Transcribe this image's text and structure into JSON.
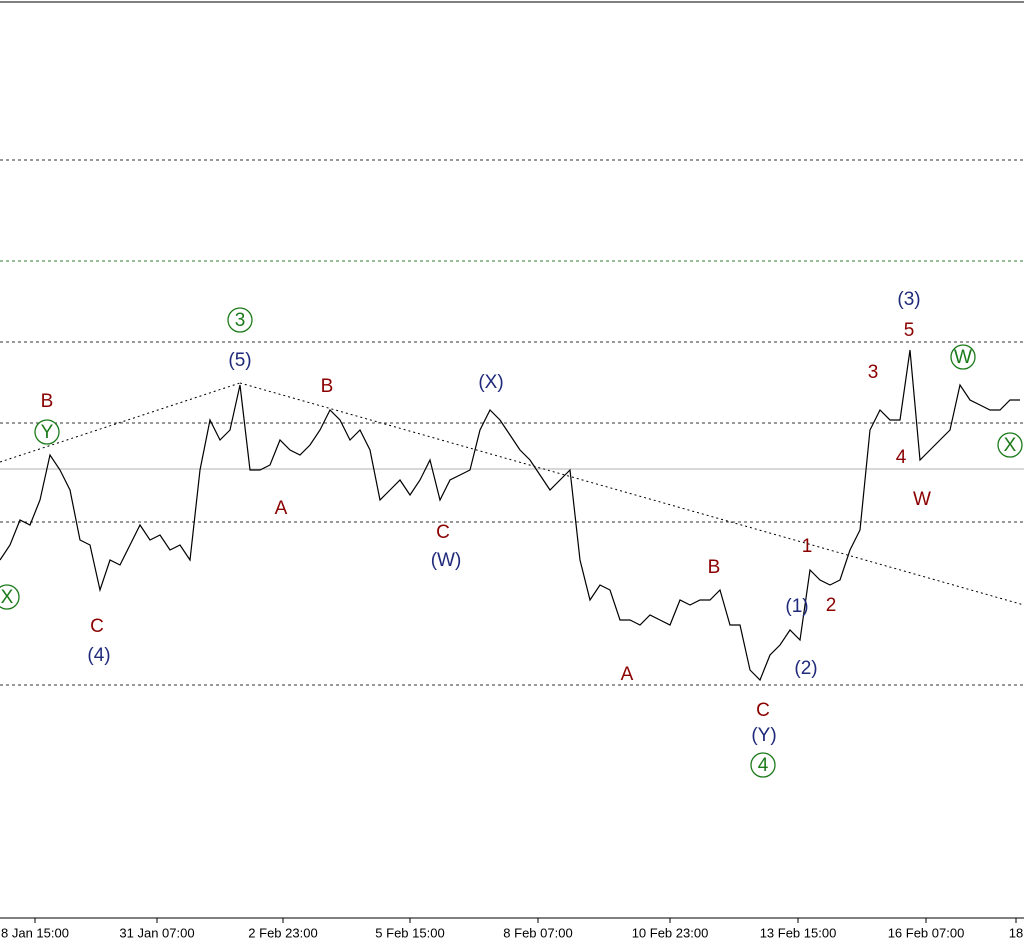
{
  "chart_data": {
    "type": "line",
    "xlim": [
      0,
      1024
    ],
    "ylim": [
      0,
      918
    ],
    "xticks": [
      {
        "value": 35,
        "label": "8 Jan 15:00"
      },
      {
        "value": 157,
        "label": "31 Jan 07:00"
      },
      {
        "value": 283,
        "label": "2 Feb 23:00"
      },
      {
        "value": 410,
        "label": "5 Feb 15:00"
      },
      {
        "value": 538,
        "label": "8 Feb 07:00"
      },
      {
        "value": 670,
        "label": "10 Feb 23:00"
      },
      {
        "value": 798,
        "label": "13 Feb 15:00"
      },
      {
        "value": 926,
        "label": "16 Feb 07:00"
      },
      {
        "value": 1016,
        "label": "18"
      }
    ],
    "series": [
      {
        "color": "#000000",
        "x": [
          0,
          10,
          20,
          30,
          40,
          50,
          60,
          70,
          80,
          90,
          100,
          110,
          120,
          130,
          140,
          150,
          160,
          170,
          180,
          190,
          200,
          210,
          220,
          230,
          240,
          250,
          260,
          270,
          280,
          290,
          300,
          310,
          320,
          330,
          340,
          350,
          360,
          370,
          380,
          390,
          400,
          410,
          420,
          430,
          440,
          450,
          460,
          470,
          480,
          490,
          500,
          510,
          520,
          530,
          540,
          550,
          560,
          570,
          580,
          590,
          600,
          610,
          620,
          630,
          640,
          650,
          660,
          670,
          680,
          690,
          700,
          710,
          720,
          730,
          740,
          750,
          760,
          770,
          780,
          790,
          800,
          810,
          820,
          830,
          840,
          850,
          860,
          870,
          880,
          890,
          900,
          910,
          920,
          930,
          940,
          950,
          960,
          970,
          980,
          990,
          1000,
          1010,
          1020
        ],
        "values": [
          358,
          373,
          398,
          393,
          418,
          463,
          448,
          428,
          378,
          373,
          328,
          358,
          353,
          373,
          393,
          378,
          383,
          368,
          373,
          358,
          448,
          498,
          478,
          488,
          533,
          448,
          448,
          453,
          478,
          468,
          463,
          473,
          488,
          508,
          498,
          478,
          488,
          468,
          418,
          428,
          438,
          423,
          438,
          458,
          418,
          438,
          443,
          448,
          488,
          508,
          498,
          483,
          468,
          458,
          443,
          428,
          438,
          448,
          358,
          318,
          333,
          328,
          298,
          298,
          293,
          303,
          298,
          293,
          318,
          313,
          318,
          318,
          328,
          293,
          293,
          248,
          238,
          263,
          273,
          288,
          278,
          348,
          338,
          333,
          338,
          368,
          388,
          488,
          508,
          498,
          498,
          568,
          458,
          468,
          478,
          488,
          533,
          518,
          513,
          508,
          508,
          518,
          518
        ]
      }
    ],
    "levels": [
      {
        "value": 758,
        "color": "#333333",
        "style": "dashed"
      },
      {
        "value": 657,
        "color": "#2e7d32",
        "style": "dashed"
      },
      {
        "value": 576,
        "color": "#333333",
        "style": "dashed"
      },
      {
        "value": 495,
        "color": "#333333",
        "style": "dashed"
      },
      {
        "value": 449,
        "color": "#b0b0b0",
        "style": "solid"
      },
      {
        "value": 396,
        "color": "#333333",
        "style": "dashed"
      },
      {
        "value": 233,
        "color": "#333333",
        "style": "dashed"
      }
    ],
    "trendlines": [
      {
        "x": [
          0,
          240
        ],
        "values": [
          456,
          535
        ]
      },
      {
        "x": [
          240,
          1024
        ],
        "values": [
          535,
          313
        ]
      }
    ],
    "annotations": [
      {
        "text": "X",
        "x": 7,
        "y": 321,
        "color": "#1a7a1a",
        "circled": true
      },
      {
        "text": "Y",
        "x": 47,
        "y": 486,
        "color": "#1a7a1a",
        "circled": true
      },
      {
        "text": "B",
        "x": 47,
        "y": 517,
        "color": "#8b0000"
      },
      {
        "text": "C",
        "x": 97,
        "y": 292,
        "color": "#8b0000"
      },
      {
        "text": "(4)",
        "x": 99,
        "y": 263,
        "color": "#1f2a7a"
      },
      {
        "text": "3",
        "x": 240,
        "y": 598,
        "color": "#1a7a1a",
        "circled": true
      },
      {
        "text": "(5)",
        "x": 240,
        "y": 558,
        "color": "#1f2a7a"
      },
      {
        "text": "B",
        "x": 327,
        "y": 532,
        "color": "#8b0000"
      },
      {
        "text": "A",
        "x": 281,
        "y": 410,
        "color": "#8b0000"
      },
      {
        "text": "C",
        "x": 443,
        "y": 386,
        "color": "#8b0000"
      },
      {
        "text": "(W)",
        "x": 446,
        "y": 358,
        "color": "#1f2a7a"
      },
      {
        "text": "(X)",
        "x": 491,
        "y": 536,
        "color": "#1f2a7a"
      },
      {
        "text": "A",
        "x": 627,
        "y": 244,
        "color": "#8b0000"
      },
      {
        "text": "B",
        "x": 714,
        "y": 351,
        "color": "#8b0000"
      },
      {
        "text": "C",
        "x": 763,
        "y": 208,
        "color": "#8b0000"
      },
      {
        "text": "(Y)",
        "x": 764,
        "y": 183,
        "color": "#1f2a7a"
      },
      {
        "text": "4",
        "x": 763,
        "y": 153,
        "color": "#1a7a1a",
        "circled": true
      },
      {
        "text": "1",
        "x": 807,
        "y": 372,
        "color": "#8b0000"
      },
      {
        "text": "(1)",
        "x": 797,
        "y": 312,
        "color": "#1f2a7a"
      },
      {
        "text": "2",
        "x": 831,
        "y": 313,
        "color": "#8b0000"
      },
      {
        "text": "(2)",
        "x": 806,
        "y": 250,
        "color": "#1f2a7a"
      },
      {
        "text": "3",
        "x": 873,
        "y": 546,
        "color": "#8b0000"
      },
      {
        "text": "(3)",
        "x": 909,
        "y": 619,
        "color": "#1f2a7a"
      },
      {
        "text": "5",
        "x": 909,
        "y": 588,
        "color": "#8b0000"
      },
      {
        "text": "4",
        "x": 901,
        "y": 461,
        "color": "#8b0000"
      },
      {
        "text": "W",
        "x": 922,
        "y": 419,
        "color": "#8b0000"
      },
      {
        "text": "W",
        "x": 963,
        "y": 561,
        "color": "#1a7a1a",
        "circled": true
      },
      {
        "text": "X",
        "x": 1010,
        "y": 473,
        "color": "#1a7a1a",
        "circled": true
      }
    ]
  }
}
